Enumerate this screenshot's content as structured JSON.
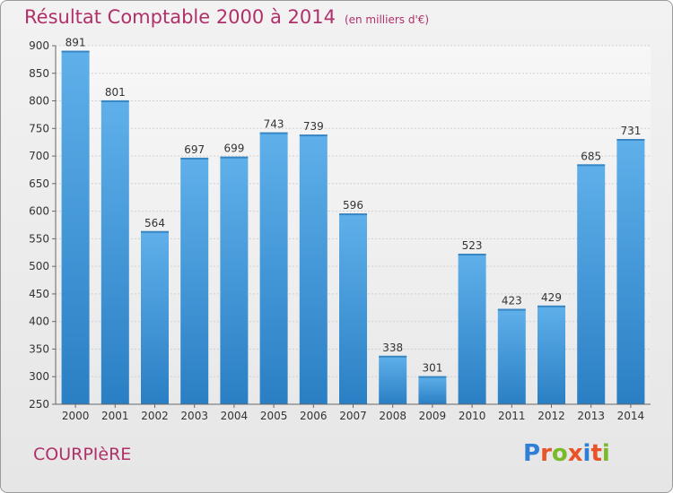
{
  "header": {
    "title": "Résultat Comptable 2000 à 2014",
    "unit": "(en milliers d'€)"
  },
  "commune": "COURPIèRE",
  "brand": {
    "name": "Proxiti",
    "letter_colors": [
      "#2f7fd6",
      "#e8532a",
      "#7ab929",
      "#e8532a",
      "#2f7fd6",
      "#e8532a",
      "#7ab929"
    ]
  },
  "colors": {
    "bar_light": "#5fb0ea",
    "bar_dark": "#2a7fc4",
    "title": "#b0306a"
  },
  "chart_data": {
    "type": "bar",
    "title": "Résultat Comptable 2000 à 2014",
    "subtitle": "(en milliers d'€)",
    "categories": [
      "2000",
      "2001",
      "2002",
      "2003",
      "2004",
      "2005",
      "2006",
      "2007",
      "2008",
      "2009",
      "2010",
      "2011",
      "2012",
      "2013",
      "2014"
    ],
    "values": [
      891,
      801,
      564,
      697,
      699,
      743,
      739,
      596,
      338,
      301,
      523,
      423,
      429,
      685,
      731
    ],
    "ylim": [
      250,
      900
    ],
    "yticks": [
      250,
      300,
      350,
      400,
      450,
      500,
      550,
      600,
      650,
      700,
      750,
      800,
      850,
      900
    ],
    "grid": "horizontal",
    "data_labels": true
  }
}
